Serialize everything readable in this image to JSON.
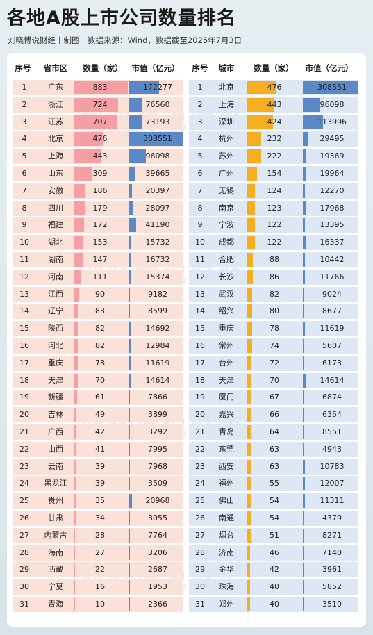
{
  "title": "各地A股上市公司数量排名",
  "subtitle": "刘晓博说财经丨制图　数据来源：Wind，数据截至2025年7月3日",
  "watermark": "刘晓博说财经",
  "colors": {
    "province_row_bg": "#fbe2d8",
    "province_count_bar": "#f59fa3",
    "province_value_bar": "#5b88c7",
    "city_row_bg": "#dde8f4",
    "city_count_bar": "#f5ae1f",
    "city_value_bar": "#5b88c7"
  },
  "chart_data": [
    {
      "type": "table",
      "headers": [
        "序号",
        "省市区",
        "数量（家）",
        "市值（亿元）"
      ],
      "rows": [
        {
          "rank": "1",
          "name": "广东",
          "count": 883,
          "value": 172277
        },
        {
          "rank": "2",
          "name": "浙江",
          "count": 724,
          "value": 76560
        },
        {
          "rank": "3",
          "name": "江苏",
          "count": 707,
          "value": 73193
        },
        {
          "rank": "4",
          "name": "北京",
          "count": 476,
          "value": 308551
        },
        {
          "rank": "5",
          "name": "上海",
          "count": 443,
          "value": 96098
        },
        {
          "rank": "6",
          "name": "山东",
          "count": 309,
          "value": 39665
        },
        {
          "rank": "7",
          "name": "安徽",
          "count": 186,
          "value": 20397
        },
        {
          "rank": "8",
          "name": "四川",
          "count": 179,
          "value": 28097
        },
        {
          "rank": "9",
          "name": "福建",
          "count": 172,
          "value": 41190
        },
        {
          "rank": "10",
          "name": "湖北",
          "count": 153,
          "value": 15732
        },
        {
          "rank": "11",
          "name": "湖南",
          "count": 147,
          "value": 16732
        },
        {
          "rank": "12",
          "name": "河南",
          "count": 111,
          "value": 15374
        },
        {
          "rank": "13",
          "name": "江西",
          "count": 90,
          "value": 9182
        },
        {
          "rank": "14",
          "name": "辽宁",
          "count": 83,
          "value": 8599
        },
        {
          "rank": "15",
          "name": "陕西",
          "count": 82,
          "value": 14692
        },
        {
          "rank": "16",
          "name": "河北",
          "count": 82,
          "value": 12984
        },
        {
          "rank": "17",
          "name": "重庆",
          "count": 78,
          "value": 11619
        },
        {
          "rank": "18",
          "name": "天津",
          "count": 70,
          "value": 14614
        },
        {
          "rank": "19",
          "name": "新疆",
          "count": 61,
          "value": 7866
        },
        {
          "rank": "20",
          "name": "吉林",
          "count": 49,
          "value": 3899
        },
        {
          "rank": "21",
          "name": "广西",
          "count": 42,
          "value": 3292
        },
        {
          "rank": "22",
          "name": "山西",
          "count": 41,
          "value": 7995
        },
        {
          "rank": "23",
          "name": "云南",
          "count": 39,
          "value": 7968
        },
        {
          "rank": "24",
          "name": "黑龙江",
          "count": 39,
          "value": 3509
        },
        {
          "rank": "25",
          "name": "贵州",
          "count": 35,
          "value": 20968
        },
        {
          "rank": "26",
          "name": "甘肃",
          "count": 34,
          "value": 3055
        },
        {
          "rank": "27",
          "name": "内蒙古",
          "count": 28,
          "value": 7764
        },
        {
          "rank": "28",
          "name": "海南",
          "count": 27,
          "value": 3206
        },
        {
          "rank": "29",
          "name": "西藏",
          "count": 22,
          "value": 2687
        },
        {
          "rank": "30",
          "name": "宁夏",
          "count": 16,
          "value": 1953
        },
        {
          "rank": "31",
          "name": "青海",
          "count": 10,
          "value": 2366
        }
      ]
    },
    {
      "type": "table",
      "headers": [
        "序号",
        "城市",
        "数量（家）",
        "市值（亿元）"
      ],
      "rows": [
        {
          "rank": "1",
          "name": "北京",
          "count": 476,
          "value": 308551
        },
        {
          "rank": "2",
          "name": "上海",
          "count": 443,
          "value": 96098
        },
        {
          "rank": "3",
          "name": "深圳",
          "count": 424,
          "value": 113996
        },
        {
          "rank": "4",
          "name": "杭州",
          "count": 232,
          "value": 29495
        },
        {
          "rank": "5",
          "name": "苏州",
          "count": 222,
          "value": 19369
        },
        {
          "rank": "6",
          "name": "广州",
          "count": 154,
          "value": 19964
        },
        {
          "rank": "7",
          "name": "无锡",
          "count": 124,
          "value": 12270
        },
        {
          "rank": "8",
          "name": "南京",
          "count": 123,
          "value": 17968
        },
        {
          "rank": "9",
          "name": "宁波",
          "count": 122,
          "value": 13395
        },
        {
          "rank": "10",
          "name": "成都",
          "count": 122,
          "value": 16337
        },
        {
          "rank": "11",
          "name": "合肥",
          "count": 88,
          "value": 10442
        },
        {
          "rank": "12",
          "name": "长沙",
          "count": 86,
          "value": 11766
        },
        {
          "rank": "13",
          "name": "武汉",
          "count": 82,
          "value": 9024
        },
        {
          "rank": "14",
          "name": "绍兴",
          "count": 80,
          "value": 8677
        },
        {
          "rank": "15",
          "name": "重庆",
          "count": 78,
          "value": 11619
        },
        {
          "rank": "16",
          "name": "常州",
          "count": 74,
          "value": 5607
        },
        {
          "rank": "17",
          "name": "台州",
          "count": 72,
          "value": 6173
        },
        {
          "rank": "18",
          "name": "天津",
          "count": 70,
          "value": 14614
        },
        {
          "rank": "19",
          "name": "厦门",
          "count": 67,
          "value": 6874
        },
        {
          "rank": "20",
          "name": "嘉兴",
          "count": 66,
          "value": 6354
        },
        {
          "rank": "21",
          "name": "青岛",
          "count": 64,
          "value": 8551
        },
        {
          "rank": "22",
          "name": "东莞",
          "count": 63,
          "value": 4943
        },
        {
          "rank": "23",
          "name": "西安",
          "count": 63,
          "value": 10783
        },
        {
          "rank": "24",
          "name": "福州",
          "count": 55,
          "value": 12007
        },
        {
          "rank": "25",
          "name": "佛山",
          "count": 54,
          "value": 11311
        },
        {
          "rank": "26",
          "name": "南通",
          "count": 54,
          "value": 4379
        },
        {
          "rank": "27",
          "name": "烟台",
          "count": 51,
          "value": 8271
        },
        {
          "rank": "28",
          "name": "济南",
          "count": 46,
          "value": 7140
        },
        {
          "rank": "29",
          "name": "金华",
          "count": 42,
          "value": 3961
        },
        {
          "rank": "30",
          "name": "珠海",
          "count": 40,
          "value": 5852
        },
        {
          "rank": "31",
          "name": "郑州",
          "count": 40,
          "value": 3510
        }
      ]
    }
  ]
}
